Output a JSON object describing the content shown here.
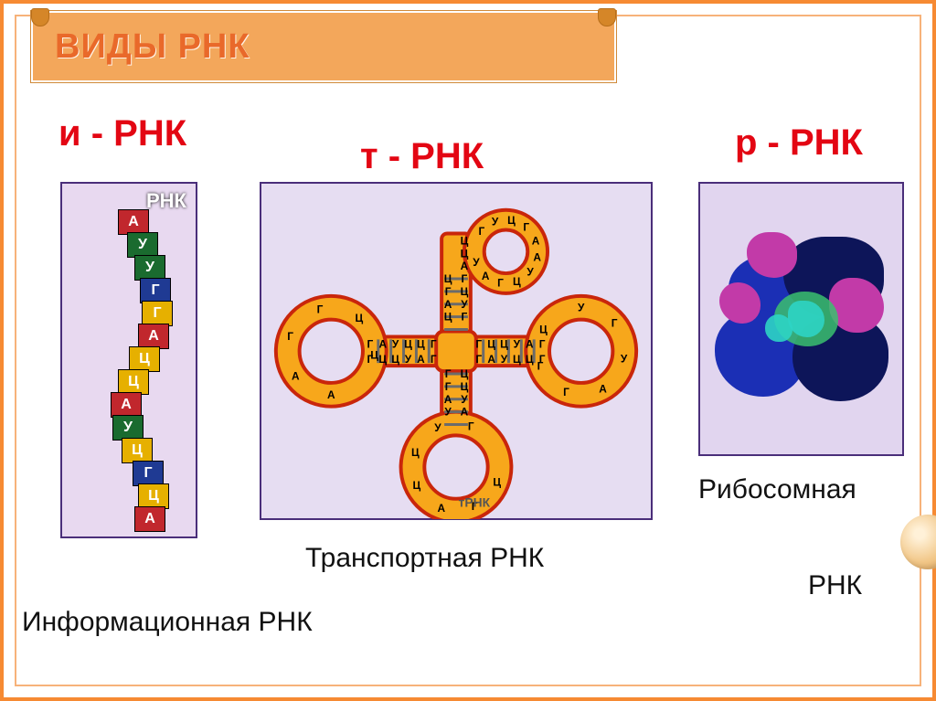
{
  "title": "ВИДЫ РНК",
  "subtitles": {
    "i": "и - РНК",
    "t": "т - РНК",
    "r": "р - РНК"
  },
  "captions": {
    "i": "Информационная РНК",
    "t": "Транспортная РНК",
    "r1": "Рибосомная",
    "r2": "РНК"
  },
  "mrna": {
    "label": "РНК",
    "panel_bg": "#e8d9f0",
    "border": "#4a2e7a",
    "segments": [
      {
        "l": "А",
        "c": "#c1272d",
        "x": -12
      },
      {
        "l": "У",
        "c": "#1a6b2f",
        "x": -2
      },
      {
        "l": "У",
        "c": "#1a6b2f",
        "x": 6
      },
      {
        "l": "Г",
        "c": "#1f3a93",
        "x": 12
      },
      {
        "l": "Г",
        "c": "#e6b000",
        "x": 14
      },
      {
        "l": "А",
        "c": "#c1272d",
        "x": 10
      },
      {
        "l": "Ц",
        "c": "#e6b000",
        "x": 0
      },
      {
        "l": "Ц",
        "c": "#e6b000",
        "x": -12
      },
      {
        "l": "А",
        "c": "#c1272d",
        "x": -20
      },
      {
        "l": "У",
        "c": "#1a6b2f",
        "x": -18
      },
      {
        "l": "Ц",
        "c": "#e6b000",
        "x": -8
      },
      {
        "l": "Г",
        "c": "#1f3a93",
        "x": 4
      },
      {
        "l": "Ц",
        "c": "#e6b000",
        "x": 10
      },
      {
        "l": "А",
        "c": "#c1272d",
        "x": 6
      }
    ]
  },
  "trna": {
    "panel_bg": "#e6ddf2",
    "border": "#4a2e7a",
    "tube_fill": "#f7a71b",
    "tube_stroke": "#c9260b",
    "pair_color": "#6b6b6b",
    "bases_top": [
      "Г",
      "У",
      "Ц",
      "Г",
      "А",
      "А",
      "У",
      "Ц",
      "Г",
      "А",
      "У"
    ],
    "bases_right": [
      "У",
      "Г",
      "У",
      "А",
      "Г",
      "Г",
      "Ц"
    ],
    "bases_left": [
      "А",
      "А",
      "Г",
      "Г",
      "Ц",
      "Ц"
    ],
    "bases_bot": [
      "Ц",
      "Г",
      "А",
      "Ц",
      "Ц",
      "У",
      "Г"
    ],
    "stem_pairs_v": 5,
    "stem_pairs_h": 5,
    "label": "тРНК",
    "note_accept": "ЦЦА"
  },
  "rrna": {
    "panel_bg": "#e1d5ef",
    "colors": {
      "blue": "#1b2fb5",
      "navy": "#0d1559",
      "magenta": "#c23aa8",
      "green": "#3bbf6f",
      "cyan": "#2dd4c4"
    }
  },
  "frame_color": "#f68a33",
  "title_bg": "#f3a75b",
  "title_color": "#e9692a",
  "subtitle_color": "#e30613",
  "caption_color": "#111111",
  "caption_fontsize": 30,
  "subtitle_fontsize": 40,
  "title_fontsize": 38
}
